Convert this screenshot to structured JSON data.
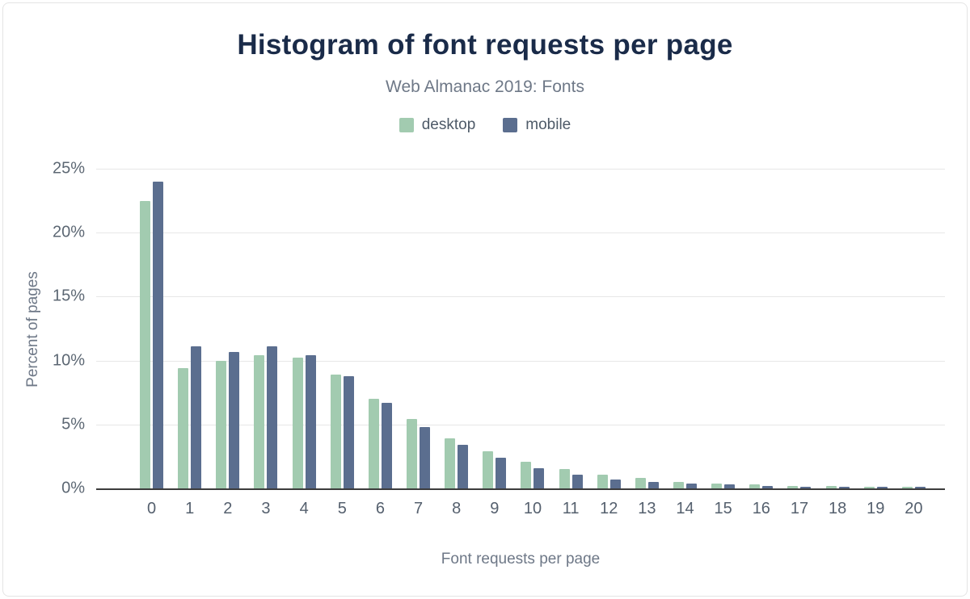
{
  "chart_data": {
    "type": "bar",
    "title": "Histogram of font requests per page",
    "subtitle": "Web Almanac 2019: Fonts",
    "xlabel": "Font requests per page",
    "ylabel": "Percent of pages",
    "ylim": [
      0,
      25
    ],
    "y_ticks": [
      0,
      5,
      10,
      15,
      20,
      25
    ],
    "y_tick_labels": [
      "0%",
      "5%",
      "10%",
      "15%",
      "20%",
      "25%"
    ],
    "grid": "horizontal",
    "legend_position": "top-center",
    "categories": [
      "0",
      "1",
      "2",
      "3",
      "4",
      "5",
      "6",
      "7",
      "8",
      "9",
      "10",
      "11",
      "12",
      "13",
      "14",
      "15",
      "16",
      "17",
      "18",
      "19",
      "20"
    ],
    "series": [
      {
        "name": "desktop",
        "color": "#a2cbb0",
        "values": [
          22.5,
          9.4,
          10.0,
          10.4,
          10.2,
          8.9,
          7.0,
          5.4,
          3.9,
          2.9,
          2.1,
          1.5,
          1.1,
          0.8,
          0.5,
          0.4,
          0.3,
          0.2,
          0.2,
          0.1,
          0.1
        ]
      },
      {
        "name": "mobile",
        "color": "#5b6e8f",
        "values": [
          24.0,
          11.1,
          10.7,
          11.1,
          10.4,
          8.8,
          6.7,
          4.8,
          3.4,
          2.4,
          1.6,
          1.1,
          0.7,
          0.5,
          0.4,
          0.3,
          0.2,
          0.1,
          0.1,
          0.1,
          0.1
        ]
      }
    ],
    "colors": {
      "title": "#1a2b49",
      "subtitle": "#6e7887",
      "axis_text": "#5c6773",
      "gridline": "#e7e7e7",
      "baseline": "#3c3c3c"
    }
  }
}
